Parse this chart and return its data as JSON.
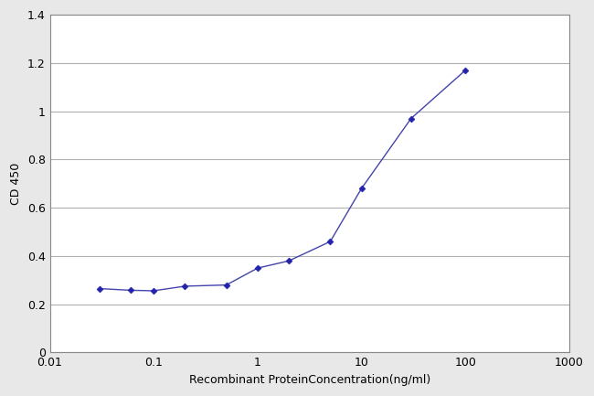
{
  "x_values": [
    0.03,
    0.06,
    0.1,
    0.2,
    0.5,
    1.0,
    2.0,
    5.0,
    10.0,
    30.0,
    100.0
  ],
  "y_values": [
    0.265,
    0.258,
    0.256,
    0.275,
    0.28,
    0.35,
    0.38,
    0.46,
    0.68,
    0.97,
    1.17
  ],
  "line_color": "#4444aa",
  "marker_color": "#2222aa",
  "marker_style": "D",
  "marker_size": 3.5,
  "line_width": 1.0,
  "xlabel": "Recombinant ProteinConcentration(ng/ml)",
  "ylabel": "CD 450",
  "xlim": [
    0.01,
    1000
  ],
  "ylim": [
    0,
    1.4
  ],
  "yticks": [
    0,
    0.2,
    0.4,
    0.6,
    0.8,
    1.0,
    1.2,
    1.4
  ],
  "ytick_labels": [
    "0",
    "0.2",
    "0.4",
    "0.6",
    "0.8",
    "1",
    "1.2",
    "1.4"
  ],
  "xtick_positions": [
    0.01,
    0.1,
    1,
    10,
    100,
    1000
  ],
  "xtick_labels": [
    "0.01",
    "0.1",
    "1",
    "10",
    "100",
    "1000"
  ],
  "figure_bg_color": "#e8e8e8",
  "plot_bg_color": "#ffffff",
  "grid_color": "#b0b0b0",
  "grid_linewidth": 0.8,
  "spine_color": "#888888",
  "xlabel_color": "#000000",
  "ylabel_color": "#000000",
  "tick_color": "#000000",
  "axis_label_fontsize": 9,
  "tick_fontsize": 9,
  "xlabel_fontsize": 9
}
